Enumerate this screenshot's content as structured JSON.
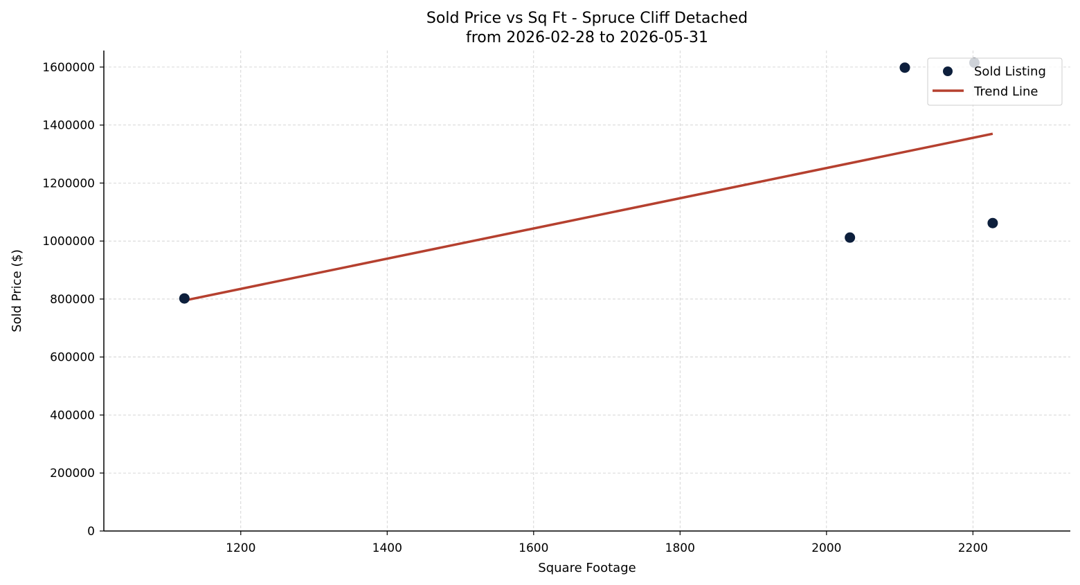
{
  "chart_data": {
    "type": "scatter",
    "title": "Sold Price vs Sq Ft - Spruce Cliff Detached",
    "subtitle": "from 2026-02-28 to 2026-05-31",
    "xlabel": "Square Footage",
    "ylabel": "Sold Price ($)",
    "xlim": [
      1013,
      2333
    ],
    "ylim": [
      0,
      1657000
    ],
    "x_ticks": [
      1200,
      1400,
      1600,
      1800,
      2000,
      2200
    ],
    "y_ticks": [
      0,
      200000,
      400000,
      600000,
      800000,
      1000000,
      1200000,
      1400000,
      1600000
    ],
    "grid": true,
    "legend_position": "top-right",
    "series": [
      {
        "name": "Sold Listing",
        "kind": "scatter",
        "color": "#0d1f3c",
        "points": [
          {
            "x": 1123,
            "y": 802000
          },
          {
            "x": 2032,
            "y": 1012000
          },
          {
            "x": 2107,
            "y": 1598000
          },
          {
            "x": 2202,
            "y": 1615000
          },
          {
            "x": 2227,
            "y": 1062000
          }
        ]
      },
      {
        "name": "Trend Line",
        "kind": "line",
        "color": "#b5402f",
        "points": [
          {
            "x": 1123,
            "y": 795000
          },
          {
            "x": 2227,
            "y": 1370000
          }
        ]
      }
    ]
  }
}
